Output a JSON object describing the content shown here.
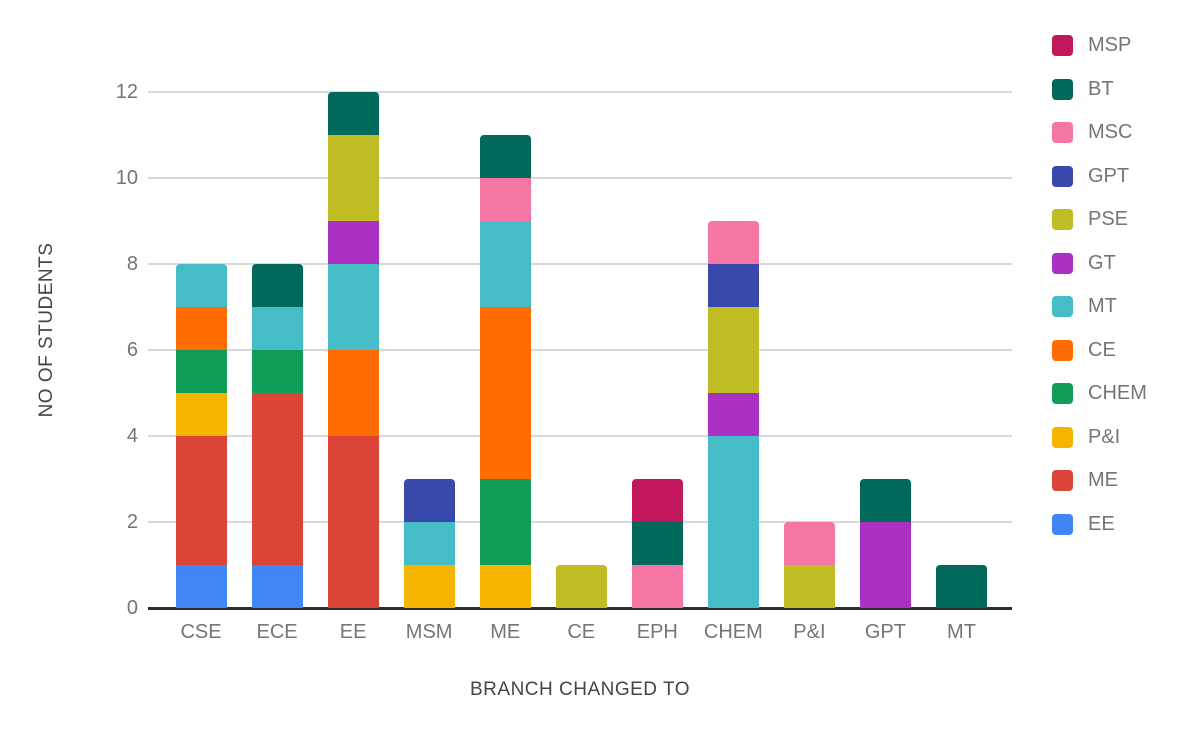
{
  "chart_data": {
    "type": "bar",
    "stacked": true,
    "title": "",
    "xlabel": "BRANCH CHANGED TO",
    "ylabel": "NO OF STUDENTS",
    "categories": [
      "CSE",
      "ECE",
      "EE",
      "MSM",
      "ME",
      "CE",
      "EPH",
      "CHEM",
      "P&I",
      "GPT",
      "MT"
    ],
    "category_totals": [
      8,
      8,
      12,
      3,
      11,
      1,
      3,
      9,
      2,
      3,
      1
    ],
    "y_ticks": [
      0,
      2,
      4,
      6,
      8,
      10,
      12
    ],
    "ylim": [
      0,
      12
    ],
    "grid": true,
    "legend_position": "right",
    "legend_order_top_to_bottom": [
      "MSP",
      "BT",
      "MSC",
      "GPT",
      "PSE",
      "GT",
      "MT",
      "CE",
      "CHEM",
      "P&I",
      "ME",
      "EE"
    ],
    "series": [
      {
        "name": "EE",
        "color": "#4285F4",
        "values": [
          1,
          1,
          0,
          0,
          0,
          0,
          0,
          0,
          0,
          0,
          0
        ]
      },
      {
        "name": "ME",
        "color": "#DB4437",
        "values": [
          3,
          4,
          4,
          0,
          0,
          0,
          0,
          0,
          0,
          0,
          0
        ]
      },
      {
        "name": "P&I",
        "color": "#F4B400",
        "values": [
          1,
          0,
          0,
          1,
          1,
          0,
          0,
          0,
          0,
          0,
          0
        ]
      },
      {
        "name": "CHEM",
        "color": "#0F9D58",
        "values": [
          1,
          1,
          0,
          0,
          2,
          0,
          0,
          0,
          0,
          0,
          0
        ]
      },
      {
        "name": "CE",
        "color": "#FF6D00",
        "values": [
          1,
          0,
          2,
          0,
          4,
          0,
          0,
          0,
          0,
          0,
          0
        ]
      },
      {
        "name": "MT",
        "color": "#46BDC6",
        "values": [
          1,
          1,
          2,
          1,
          2,
          0,
          0,
          4,
          0,
          0,
          0
        ]
      },
      {
        "name": "GT",
        "color": "#AB30C4",
        "values": [
          0,
          0,
          1,
          0,
          0,
          0,
          0,
          1,
          0,
          2,
          0
        ]
      },
      {
        "name": "PSE",
        "color": "#C0BC23",
        "values": [
          0,
          0,
          2,
          0,
          0,
          1,
          0,
          2,
          1,
          0,
          0
        ]
      },
      {
        "name": "GPT",
        "color": "#3949AB",
        "values": [
          0,
          0,
          0,
          1,
          0,
          0,
          0,
          1,
          0,
          0,
          0
        ]
      },
      {
        "name": "MSC",
        "color": "#F576A4",
        "values": [
          0,
          0,
          0,
          0,
          1,
          0,
          1,
          1,
          1,
          0,
          0
        ]
      },
      {
        "name": "BT",
        "color": "#00695C",
        "values": [
          0,
          1,
          1,
          0,
          1,
          0,
          1,
          0,
          0,
          1,
          1
        ]
      },
      {
        "name": "MSP",
        "color": "#C2185B",
        "values": [
          0,
          0,
          0,
          0,
          0,
          0,
          1,
          0,
          0,
          0,
          0
        ]
      }
    ]
  }
}
